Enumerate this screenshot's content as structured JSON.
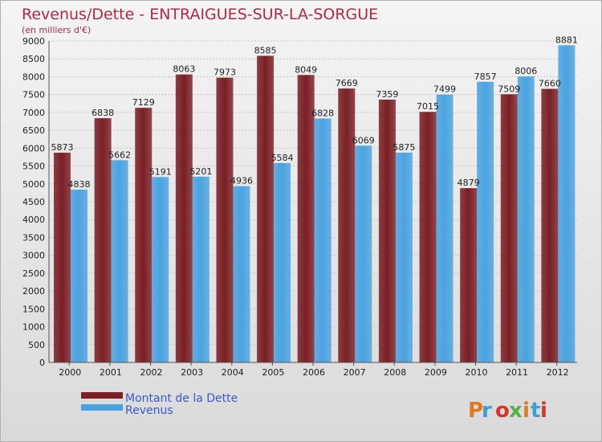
{
  "chart_data": {
    "type": "bar",
    "title": "Revenus/Dette - ENTRAIGUES-SUR-LA-SORGUE",
    "subtitle": "(en milliers d'€)",
    "categories": [
      "2000",
      "2001",
      "2002",
      "2003",
      "2004",
      "2005",
      "2006",
      "2007",
      "2008",
      "2009",
      "2010",
      "2011",
      "2012"
    ],
    "series": [
      {
        "name": "Montant de la Dette",
        "color": "#7a1f24",
        "values": [
          5873,
          6838,
          7129,
          8063,
          7973,
          8585,
          8049,
          7669,
          7359,
          7015,
          4879,
          7509,
          7660
        ]
      },
      {
        "name": "Revenus",
        "color": "#4aa3e0",
        "values": [
          4838,
          5662,
          5191,
          5201,
          4936,
          5584,
          6828,
          6069,
          5875,
          7499,
          7857,
          8006,
          8881
        ]
      }
    ],
    "ylim": [
      0,
      9000
    ],
    "ystep": 500,
    "grid": true,
    "legend_position": "bottom-left"
  },
  "logo": {
    "text": "Proxiti",
    "colors": [
      "#e07a1f",
      "#3aa0d8",
      "#d8342a",
      "#55b04a",
      "#e07a1f",
      "#3aa0d8",
      "#d8342a"
    ]
  }
}
